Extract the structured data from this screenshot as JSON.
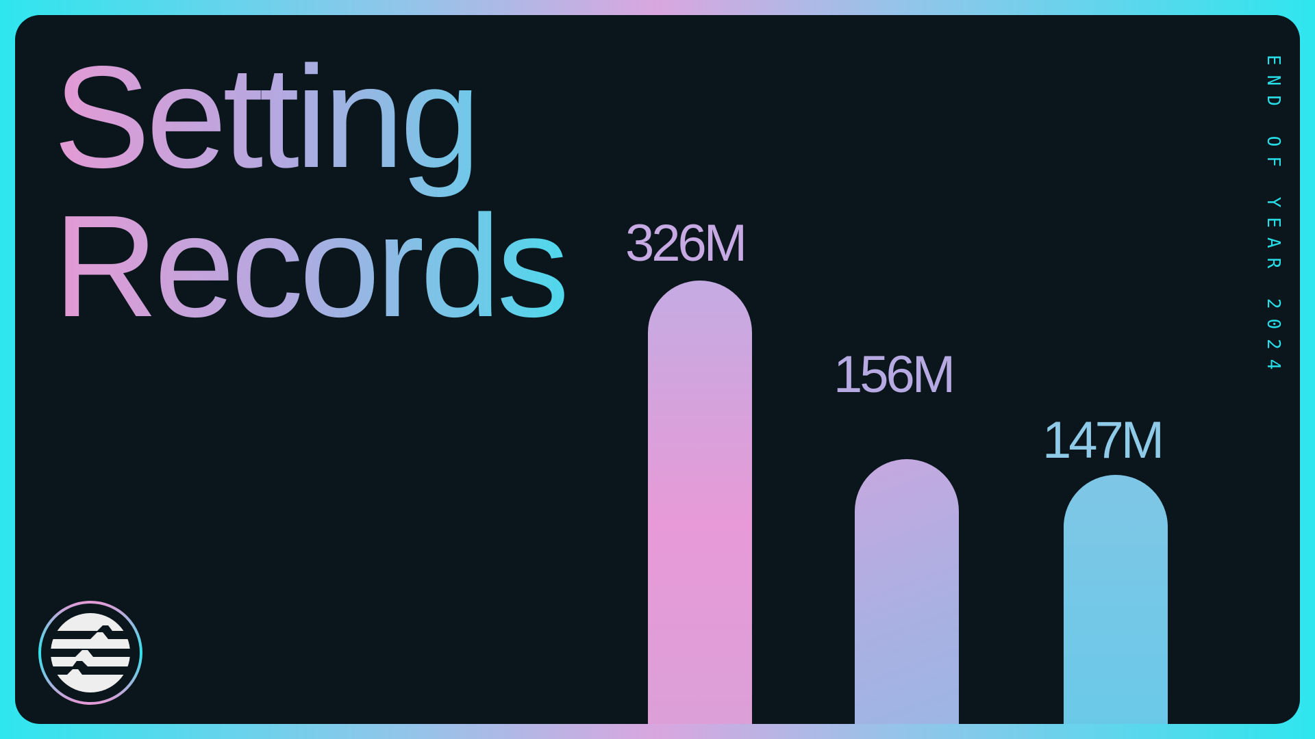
{
  "title_line1": "Setting",
  "title_line2": "Records",
  "side_label": "END OF YEAR 2024",
  "logo": "aptos-logo",
  "colors": {
    "accent_cyan": "#26dde8",
    "accent_pink": "#e49ad4",
    "panel": "#0a161c"
  },
  "chart_data": {
    "type": "bar",
    "categories": [
      "",
      "",
      ""
    ],
    "values": [
      326,
      156,
      147
    ],
    "data_labels": [
      "326M",
      "156M",
      "147M"
    ],
    "unit": "M",
    "grid": false
  }
}
